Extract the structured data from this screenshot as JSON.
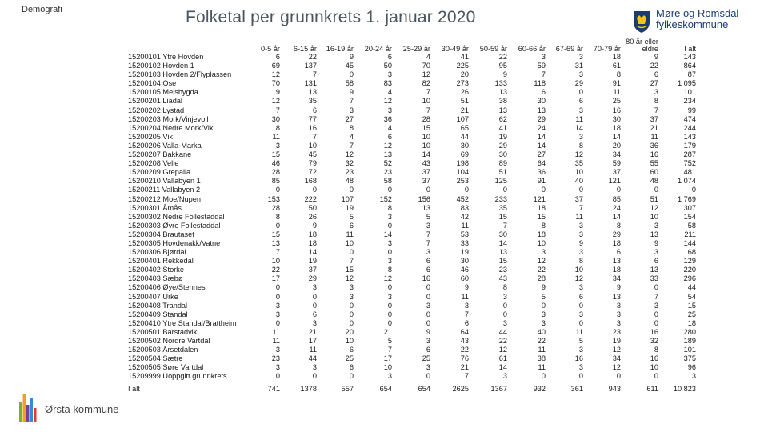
{
  "header": {
    "corner_label": "Demografi",
    "title": "Folketal per grunnkrets 1. januar 2020"
  },
  "logos": {
    "right_line1": "Møre og Romsdal",
    "right_line2": "fylkeskommune",
    "left_name": "Ørsta kommune",
    "left_colors": [
      "#6fb33b",
      "#f0a21b",
      "#7a3f98",
      "#2f8fd1",
      "#e23b2e"
    ]
  },
  "table": {
    "columns": [
      "0-5 år",
      "6-15 år",
      "16-19 år",
      "20-24 år",
      "25-29 år",
      "30-49 år",
      "50-59 år",
      "60-66 år",
      "67-69 år",
      "70-79 år",
      "80 år eller eldre",
      "I alt"
    ],
    "rows": [
      {
        "name": "15200101 Ytre Hovden",
        "values": [
          "6",
          "22",
          "9",
          "6",
          "4",
          "41",
          "22",
          "3",
          "3",
          "18",
          "9",
          "143"
        ]
      },
      {
        "name": "15200102 Hovden 1",
        "values": [
          "69",
          "137",
          "45",
          "50",
          "70",
          "225",
          "95",
          "59",
          "31",
          "61",
          "22",
          "864"
        ]
      },
      {
        "name": "15200103 Hovden 2/Flyplassen",
        "values": [
          "12",
          "7",
          "0",
          "3",
          "12",
          "20",
          "9",
          "7",
          "3",
          "8",
          "6",
          "87"
        ]
      },
      {
        "name": "15200104 Ose",
        "values": [
          "70",
          "131",
          "58",
          "83",
          "82",
          "273",
          "133",
          "118",
          "29",
          "91",
          "27",
          "1 095"
        ]
      },
      {
        "name": "15200105 Melsbygda",
        "values": [
          "9",
          "13",
          "9",
          "4",
          "7",
          "26",
          "13",
          "6",
          "0",
          "11",
          "3",
          "101"
        ]
      },
      {
        "name": "15200201 Liadal",
        "values": [
          "12",
          "35",
          "7",
          "12",
          "10",
          "51",
          "38",
          "30",
          "6",
          "25",
          "8",
          "234"
        ]
      },
      {
        "name": "15200202 Lystad",
        "values": [
          "7",
          "6",
          "3",
          "3",
          "7",
          "21",
          "13",
          "13",
          "3",
          "16",
          "7",
          "99"
        ]
      },
      {
        "name": "15200203 Mork/Vinjevoll",
        "values": [
          "30",
          "77",
          "27",
          "36",
          "28",
          "107",
          "62",
          "29",
          "11",
          "30",
          "37",
          "474"
        ]
      },
      {
        "name": "15200204 Nedre Mork/Vik",
        "values": [
          "8",
          "16",
          "8",
          "14",
          "15",
          "65",
          "41",
          "24",
          "14",
          "18",
          "21",
          "244"
        ]
      },
      {
        "name": "15200205 Vik",
        "values": [
          "11",
          "7",
          "4",
          "6",
          "10",
          "44",
          "19",
          "14",
          "3",
          "14",
          "11",
          "143"
        ]
      },
      {
        "name": "15200206 Valla-Marka",
        "values": [
          "3",
          "10",
          "7",
          "12",
          "10",
          "30",
          "29",
          "14",
          "8",
          "20",
          "36",
          "179"
        ]
      },
      {
        "name": "15200207 Bakkane",
        "values": [
          "15",
          "45",
          "12",
          "13",
          "14",
          "69",
          "30",
          "27",
          "12",
          "34",
          "16",
          "287"
        ]
      },
      {
        "name": "15200208 Velle",
        "values": [
          "46",
          "79",
          "32",
          "52",
          "43",
          "198",
          "89",
          "64",
          "35",
          "59",
          "55",
          "752"
        ]
      },
      {
        "name": "15200209 Grepalia",
        "values": [
          "28",
          "72",
          "23",
          "23",
          "37",
          "104",
          "51",
          "36",
          "10",
          "37",
          "60",
          "481"
        ]
      },
      {
        "name": "15200210 Vallabyen 1",
        "values": [
          "85",
          "168",
          "48",
          "58",
          "37",
          "253",
          "125",
          "91",
          "40",
          "121",
          "48",
          "1 074"
        ]
      },
      {
        "name": "15200211 Vallabyen 2",
        "values": [
          "0",
          "0",
          "0",
          "0",
          "0",
          "0",
          "0",
          "0",
          "0",
          "0",
          "0",
          "0"
        ]
      },
      {
        "name": "15200212 Moe/Nupen",
        "values": [
          "153",
          "222",
          "107",
          "152",
          "156",
          "452",
          "233",
          "121",
          "37",
          "85",
          "51",
          "1 769"
        ]
      },
      {
        "name": "15200301 Åmås",
        "values": [
          "28",
          "50",
          "19",
          "18",
          "13",
          "83",
          "35",
          "18",
          "7",
          "24",
          "12",
          "307"
        ]
      },
      {
        "name": "15200302 Nedre Follestaddal",
        "values": [
          "8",
          "26",
          "5",
          "3",
          "5",
          "42",
          "15",
          "15",
          "11",
          "14",
          "10",
          "154"
        ]
      },
      {
        "name": "15200303 Øvre Follestaddal",
        "values": [
          "0",
          "9",
          "6",
          "0",
          "3",
          "11",
          "7",
          "8",
          "3",
          "8",
          "3",
          "58"
        ]
      },
      {
        "name": "15200304 Brautaset",
        "values": [
          "15",
          "18",
          "11",
          "14",
          "7",
          "53",
          "30",
          "18",
          "3",
          "29",
          "13",
          "211"
        ]
      },
      {
        "name": "15200305 Hovdenakk/Vatne",
        "values": [
          "13",
          "18",
          "10",
          "3",
          "7",
          "33",
          "14",
          "10",
          "9",
          "18",
          "9",
          "144"
        ]
      },
      {
        "name": "15200306 Bjørdal",
        "values": [
          "7",
          "14",
          "0",
          "0",
          "3",
          "19",
          "13",
          "3",
          "3",
          "6",
          "3",
          "68"
        ]
      },
      {
        "name": "15200401 Rekkedal",
        "values": [
          "10",
          "19",
          "7",
          "3",
          "6",
          "30",
          "15",
          "12",
          "8",
          "13",
          "6",
          "129"
        ]
      },
      {
        "name": "15200402 Storke",
        "values": [
          "22",
          "37",
          "15",
          "8",
          "6",
          "46",
          "23",
          "22",
          "10",
          "18",
          "13",
          "220"
        ]
      },
      {
        "name": "15200403 Sæbø",
        "values": [
          "17",
          "29",
          "12",
          "12",
          "16",
          "60",
          "43",
          "28",
          "12",
          "34",
          "33",
          "296"
        ]
      },
      {
        "name": "15200406 Øye/Stennes",
        "values": [
          "0",
          "3",
          "3",
          "0",
          "0",
          "9",
          "8",
          "9",
          "3",
          "9",
          "0",
          "44"
        ]
      },
      {
        "name": "15200407 Urke",
        "values": [
          "0",
          "0",
          "3",
          "3",
          "0",
          "11",
          "3",
          "5",
          "6",
          "13",
          "7",
          "54"
        ]
      },
      {
        "name": "15200408 Trandal",
        "values": [
          "3",
          "0",
          "0",
          "0",
          "3",
          "3",
          "0",
          "0",
          "0",
          "3",
          "3",
          "15"
        ]
      },
      {
        "name": "15200409 Standal",
        "values": [
          "3",
          "6",
          "0",
          "0",
          "0",
          "7",
          "0",
          "3",
          "3",
          "3",
          "0",
          "25"
        ]
      },
      {
        "name": "15200410 Ytre Standal/Brattheim",
        "values": [
          "0",
          "3",
          "0",
          "0",
          "0",
          "6",
          "3",
          "3",
          "0",
          "3",
          "0",
          "18"
        ]
      },
      {
        "name": "15200501 Barstadvik",
        "values": [
          "11",
          "21",
          "20",
          "21",
          "9",
          "64",
          "44",
          "40",
          "11",
          "23",
          "16",
          "280"
        ]
      },
      {
        "name": "15200502 Nordre Vartdal",
        "values": [
          "11",
          "17",
          "10",
          "5",
          "3",
          "43",
          "22",
          "22",
          "5",
          "19",
          "32",
          "189"
        ]
      },
      {
        "name": "15200503 Årsetdalen",
        "values": [
          "3",
          "11",
          "6",
          "7",
          "6",
          "22",
          "12",
          "11",
          "3",
          "12",
          "8",
          "101"
        ]
      },
      {
        "name": "15200504 Sætre",
        "values": [
          "23",
          "44",
          "25",
          "17",
          "25",
          "76",
          "61",
          "38",
          "16",
          "34",
          "16",
          "375"
        ]
      },
      {
        "name": "15200505 Søre Vartdal",
        "values": [
          "3",
          "3",
          "6",
          "10",
          "3",
          "21",
          "14",
          "11",
          "3",
          "12",
          "10",
          "96"
        ]
      },
      {
        "name": "15209999 Uoppgitt grunnkrets",
        "values": [
          "0",
          "0",
          "0",
          "3",
          "0",
          "7",
          "3",
          "0",
          "0",
          "0",
          "0",
          "13"
        ]
      }
    ],
    "total": {
      "name": "I alt",
      "values": [
        "741",
        "1378",
        "557",
        "654",
        "654",
        "2625",
        "1367",
        "932",
        "361",
        "943",
        "611",
        "10 823"
      ]
    }
  }
}
